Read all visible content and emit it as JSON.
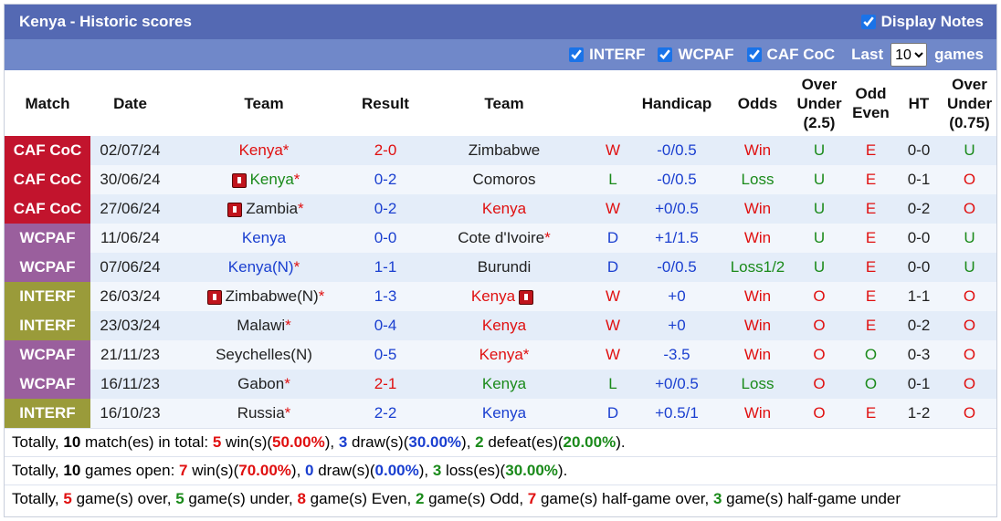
{
  "header": {
    "title": "Kenya - Historic scores",
    "display_notes": "Display Notes"
  },
  "filters": {
    "options": [
      "INTERF",
      "WCPAF",
      "CAF CoC"
    ],
    "last_label": "Last",
    "last_value": "10",
    "games_label": "games"
  },
  "table": {
    "columns": [
      "Match",
      "Date",
      "Team",
      "Result",
      "Team",
      "Handicap",
      "Odds",
      "Over Under (2.5)",
      "Odd Even",
      "HT",
      "Over Under (0.75)"
    ],
    "rows": [
      {
        "match": "CAF CoC",
        "date": "02/07/24",
        "team1": "Kenya*",
        "result": "2-0",
        "team2": "Zimbabwe",
        "outcome": "W",
        "handicap": "-0/0.5",
        "odds": "Win",
        "over_under": "U",
        "odd_even": "E",
        "ht": "0-0",
        "over_under_075": "U"
      },
      {
        "match": "CAF CoC",
        "date": "30/06/24",
        "team1": "Kenya*",
        "result": "0-2",
        "team2": "Comoros",
        "outcome": "L",
        "handicap": "-0/0.5",
        "odds": "Loss",
        "over_under": "U",
        "odd_even": "E",
        "ht": "0-1",
        "over_under_075": "O"
      },
      {
        "match": "CAF CoC",
        "date": "27/06/24",
        "team1": "Zambia*",
        "result": "0-2",
        "team2": "Kenya",
        "outcome": "W",
        "handicap": "+0/0.5",
        "odds": "Win",
        "over_under": "U",
        "odd_even": "E",
        "ht": "0-2",
        "over_under_075": "O"
      },
      {
        "match": "WCPAF",
        "date": "11/06/24",
        "team1": "Kenya",
        "result": "0-0",
        "team2": "Cote d'Ivoire*",
        "outcome": "D",
        "handicap": "+1/1.5",
        "odds": "Win",
        "over_under": "U",
        "odd_even": "E",
        "ht": "0-0",
        "over_under_075": "U"
      },
      {
        "match": "WCPAF",
        "date": "07/06/24",
        "team1": "Kenya(N)*",
        "result": "1-1",
        "team2": "Burundi",
        "outcome": "D",
        "handicap": "-0/0.5",
        "odds": "Loss1/2",
        "over_under": "U",
        "odd_even": "E",
        "ht": "0-0",
        "over_under_075": "U"
      },
      {
        "match": "INTERF",
        "date": "26/03/24",
        "team1": "Zimbabwe(N)*",
        "result": "1-3",
        "team2": "Kenya",
        "outcome": "W",
        "handicap": "+0",
        "odds": "Win",
        "over_under": "O",
        "odd_even": "E",
        "ht": "1-1",
        "over_under_075": "O"
      },
      {
        "match": "INTERF",
        "date": "23/03/24",
        "team1": "Malawi*",
        "result": "0-4",
        "team2": "Kenya",
        "outcome": "W",
        "handicap": "+0",
        "odds": "Win",
        "over_under": "O",
        "odd_even": "E",
        "ht": "0-2",
        "over_under_075": "O"
      },
      {
        "match": "WCPAF",
        "date": "21/11/23",
        "team1": "Seychelles(N)",
        "result": "0-5",
        "team2": "Kenya*",
        "outcome": "W",
        "handicap": "-3.5",
        "odds": "Win",
        "over_under": "O",
        "odd_even": "O",
        "ht": "0-3",
        "over_under_075": "O"
      },
      {
        "match": "WCPAF",
        "date": "16/11/23",
        "team1": "Gabon*",
        "result": "2-1",
        "team2": "Kenya",
        "outcome": "L",
        "handicap": "+0/0.5",
        "odds": "Loss",
        "over_under": "O",
        "odd_even": "O",
        "ht": "0-1",
        "over_under_075": "O"
      },
      {
        "match": "INTERF",
        "date": "16/10/23",
        "team1": "Russia*",
        "result": "2-2",
        "team2": "Kenya",
        "outcome": "D",
        "handicap": "+0.5/1",
        "odds": "Win",
        "over_under": "O",
        "odd_even": "E",
        "ht": "1-2",
        "over_under_075": "O"
      }
    ]
  },
  "summary": {
    "lines": [
      [
        "Totally, ",
        "10",
        " match(es) in total: ",
        "5",
        " win(s)(",
        "50.00%",
        "), ",
        "3",
        " draw(s)(",
        "30.00%",
        "), ",
        "2",
        " defeat(es)(",
        "20.00%",
        ")."
      ],
      [
        "Totally, ",
        "10",
        " games open: ",
        "7",
        " win(s)(",
        "70.00%",
        "), ",
        "0",
        " draw(s)(",
        "0.00%",
        "), ",
        "3",
        " loss(es)(",
        "30.00%",
        ")."
      ],
      [
        "Totally, ",
        "5",
        " game(s) over, ",
        "5",
        " game(s) under, ",
        "8",
        " game(s) Even, ",
        "2",
        " game(s) Odd, ",
        "7",
        " game(s) half-game over, ",
        "3",
        " game(s) half-game under"
      ]
    ]
  }
}
